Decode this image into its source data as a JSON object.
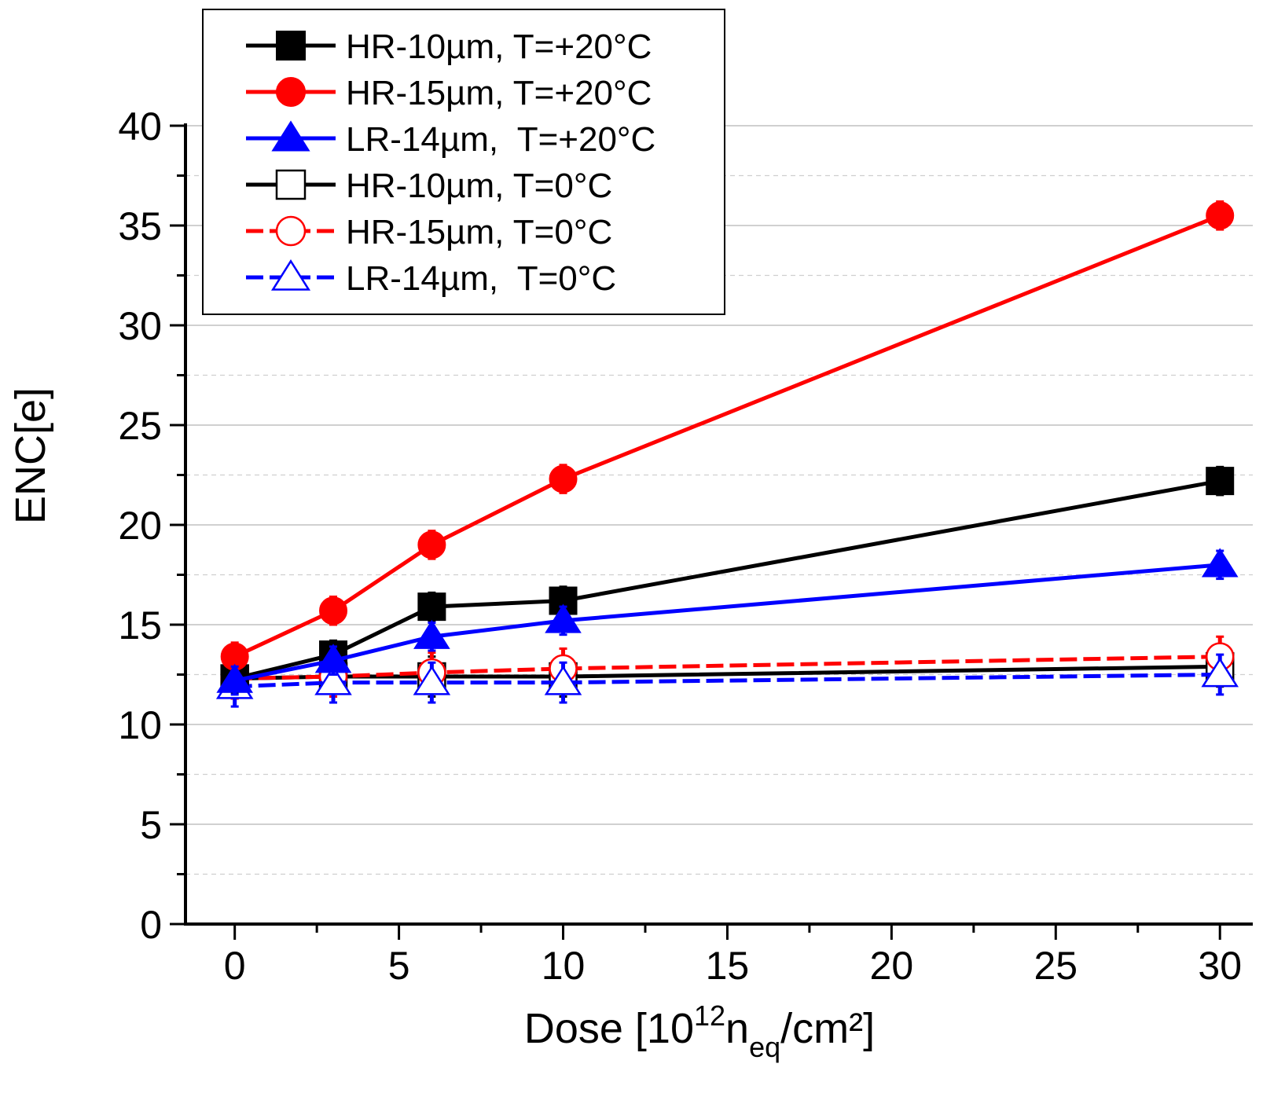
{
  "chart_data": {
    "type": "line",
    "title": "",
    "xlabel": {
      "text": "Dose [10",
      "sup": "12",
      "mid": "n",
      "sub": "eq",
      "end": "/cm²]"
    },
    "ylabel": "ENC[e]",
    "xlim": [
      -1.5,
      31
    ],
    "ylim": [
      0,
      40
    ],
    "x_ticks": [
      0,
      5,
      10,
      15,
      20,
      25,
      30
    ],
    "x_tick_labels": [
      "0",
      "5",
      "10",
      "15",
      "20",
      "25",
      "30"
    ],
    "y_ticks": [
      0,
      5,
      10,
      15,
      20,
      25,
      30,
      35,
      40
    ],
    "y_tick_labels": [
      "0",
      "5",
      "10",
      "15",
      "20",
      "25",
      "30",
      "35",
      "40"
    ],
    "grid": true,
    "legend_position": "top-left",
    "x": [
      0,
      3,
      6,
      10,
      30
    ],
    "series": [
      {
        "name": "HR-10µm, T=+20°C",
        "values": [
          12.3,
          13.5,
          15.9,
          16.2,
          22.2
        ],
        "color": "#000000",
        "marker": "square",
        "filled": true,
        "dashed": false
      },
      {
        "name": "HR-15µm, T=+20°C",
        "values": [
          13.4,
          15.7,
          19.0,
          22.3,
          35.5
        ],
        "color": "#ff0000",
        "marker": "circle",
        "filled": true,
        "dashed": false
      },
      {
        "name": "LR-14µm,  T=+20°C",
        "values": [
          12.2,
          13.2,
          14.4,
          15.2,
          18.0
        ],
        "color": "#0000ff",
        "marker": "triangle",
        "filled": true,
        "dashed": false
      },
      {
        "name": "HR-10µm, T=0°C",
        "values": [
          12.3,
          12.4,
          12.4,
          12.4,
          12.9
        ],
        "color": "#000000",
        "marker": "square",
        "filled": false,
        "dashed": false
      },
      {
        "name": "HR-15µm, T=0°C",
        "values": [
          12.3,
          12.4,
          12.6,
          12.8,
          13.4
        ],
        "color": "#ff0000",
        "marker": "circle",
        "filled": false,
        "dashed": true
      },
      {
        "name": "LR-14µm,  T=0°C",
        "values": [
          11.9,
          12.1,
          12.1,
          12.1,
          12.5
        ],
        "color": "#0000ff",
        "marker": "triangle",
        "filled": false,
        "dashed": true
      }
    ]
  }
}
